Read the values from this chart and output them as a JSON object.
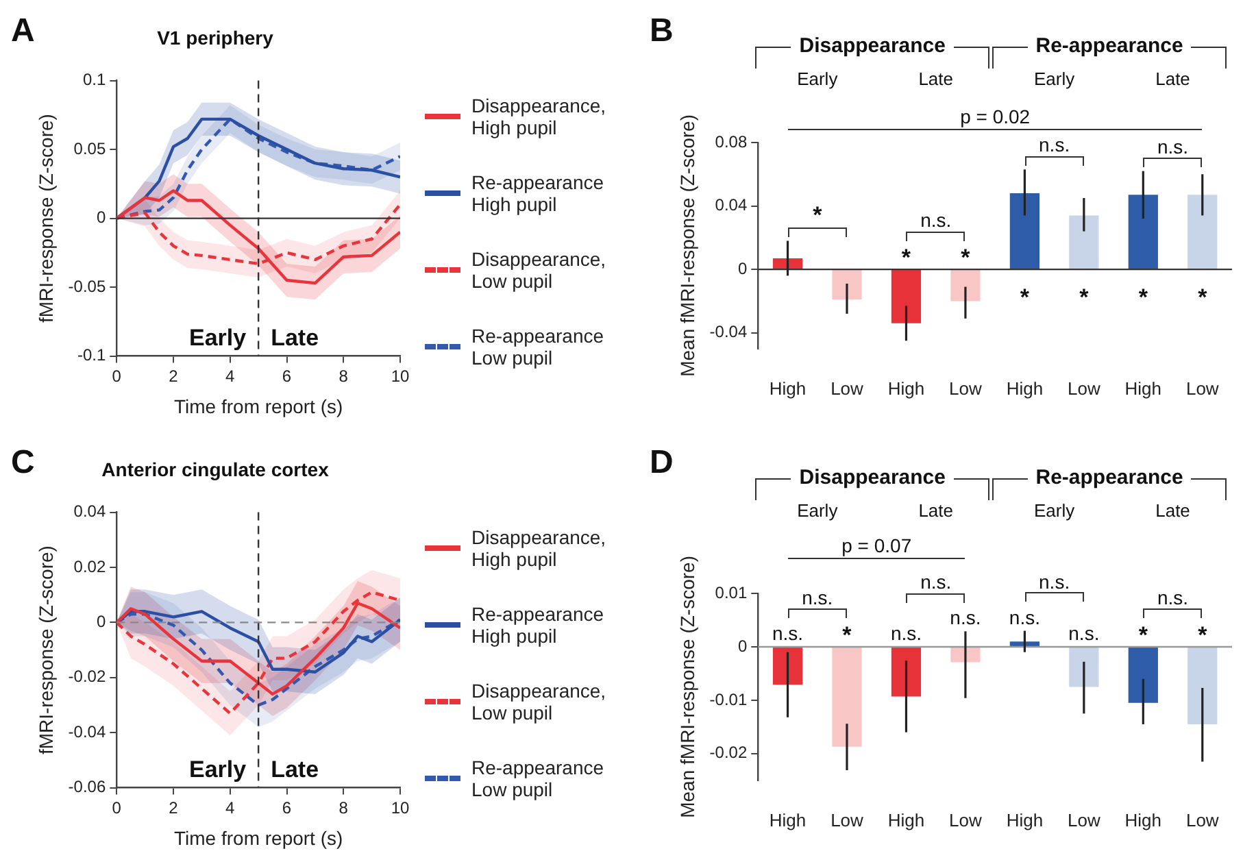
{
  "chart_data": [
    {
      "type": "line",
      "title": "V1 periphery",
      "xlabel": "Time from report (s)",
      "ylabel": "fMRI-response (Z-score)",
      "x": [
        0,
        1,
        1.5,
        2,
        2.5,
        3,
        4,
        5,
        6,
        7,
        8,
        9,
        10
      ],
      "xlim": [
        0,
        10
      ],
      "xticks": [
        0,
        2,
        4,
        6,
        8,
        10
      ],
      "ylim": [
        -0.1,
        0.1
      ],
      "yticks": [
        -0.1,
        -0.05,
        0,
        0.05,
        0.1
      ],
      "legend": "right",
      "series": [
        {
          "name": "Disappearance, High pupil",
          "color": "#e8343b",
          "values": [
            0,
            0.015,
            0.013,
            0.02,
            0.013,
            0.013,
            -0.005,
            -0.022,
            -0.045,
            -0.047,
            -0.028,
            -0.027,
            -0.01
          ],
          "lower": [
            0,
            0.003,
            0.001,
            0.008,
            0.001,
            0.001,
            -0.017,
            -0.034,
            -0.057,
            -0.059,
            -0.04,
            -0.039,
            -0.022
          ],
          "upper": [
            0,
            0.027,
            0.025,
            0.032,
            0.025,
            0.025,
            0.007,
            -0.01,
            -0.033,
            -0.035,
            -0.016,
            -0.015,
            0.002
          ]
        },
        {
          "name": "Re-appearance High pupil",
          "color": "#2b4fa3",
          "values": [
            0,
            0.015,
            0.027,
            0.052,
            0.058,
            0.072,
            0.072,
            0.06,
            0.05,
            0.04,
            0.036,
            0.035,
            0.03
          ],
          "lower": [
            0,
            0.003,
            0.015,
            0.04,
            0.046,
            0.06,
            0.06,
            0.048,
            0.038,
            0.028,
            0.024,
            0.023,
            0.018
          ],
          "upper": [
            0,
            0.027,
            0.039,
            0.064,
            0.07,
            0.084,
            0.084,
            0.072,
            0.062,
            0.052,
            0.048,
            0.047,
            0.042
          ]
        },
        {
          "name": "Disappearance, Low pupil",
          "color": "#e8343b",
          "line_style": "dashed",
          "values": [
            0,
            0.004,
            -0.01,
            -0.02,
            -0.026,
            -0.027,
            -0.03,
            -0.033,
            -0.025,
            -0.03,
            -0.02,
            -0.015,
            0.01
          ],
          "lower": [
            0,
            -0.006,
            -0.02,
            -0.03,
            -0.036,
            -0.037,
            -0.04,
            -0.043,
            -0.035,
            -0.04,
            -0.03,
            -0.025,
            0
          ],
          "upper": [
            0,
            0.014,
            0,
            -0.01,
            -0.016,
            -0.017,
            -0.02,
            -0.023,
            -0.015,
            -0.02,
            -0.01,
            -0.005,
            0.02
          ]
        },
        {
          "name": "Re-appearance Low pupil",
          "color": "#3358b0",
          "line_style": "dashed",
          "values": [
            0,
            0.005,
            0.006,
            0.015,
            0.035,
            0.05,
            0.072,
            0.058,
            0.048,
            0.04,
            0.038,
            0.035,
            0.045
          ],
          "lower": [
            0,
            -0.005,
            -0.004,
            0.005,
            0.025,
            0.04,
            0.062,
            0.048,
            0.038,
            0.03,
            0.028,
            0.025,
            0.035
          ],
          "upper": [
            0,
            0.015,
            0.016,
            0.025,
            0.045,
            0.06,
            0.082,
            0.068,
            0.058,
            0.05,
            0.048,
            0.045,
            0.055
          ]
        }
      ],
      "ref_lines": [
        {
          "axis": "x",
          "value": 5,
          "color": "#333333",
          "line_style": "dashed"
        },
        {
          "axis": "y",
          "value": 0,
          "color": "#333333"
        }
      ],
      "annotations": [
        "A",
        "Early",
        "Late"
      ]
    },
    {
      "type": "bar",
      "ylabel": "Mean fMRI-response (Z-score)",
      "categories": [
        "High",
        "Low",
        "High",
        "Low",
        "High",
        "Low",
        "High",
        "Low"
      ],
      "values": [
        0.007,
        -0.019,
        -0.034,
        -0.02,
        0.048,
        0.034,
        0.047,
        0.047
      ],
      "colors": [
        "#e8323a",
        "#f9c6c6",
        "#e8323a",
        "#f9c6c6",
        "#2f5ca8",
        "#c8d4e8",
        "#2f5ca8",
        "#c8d4e8"
      ],
      "errors": [
        [
          -0.004,
          0.018
        ],
        [
          -0.028,
          -0.009
        ],
        [
          -0.045,
          -0.023
        ],
        [
          -0.031,
          -0.011
        ],
        [
          0.034,
          0.063
        ],
        [
          0.024,
          0.045
        ],
        [
          0.032,
          0.062
        ],
        [
          0.034,
          0.06
        ]
      ],
      "ylim": [
        -0.05,
        0.08
      ],
      "yticks": [
        -0.04,
        0,
        0.04,
        0.08
      ],
      "ref_lines": [
        {
          "axis": "y",
          "value": 0,
          "color": "#333333"
        }
      ],
      "annotations": [
        "B",
        "Disappearance",
        "Re-appearance",
        "Early",
        "Late",
        "Early",
        "Late",
        "p = 0.02",
        "*",
        "n.s.",
        "n.s.",
        "n.s.",
        "*",
        "*",
        "*",
        "*",
        "*",
        "*"
      ]
    },
    {
      "type": "line",
      "title": "Anterior cingulate cortex",
      "xlabel": "Time from report (s)",
      "ylabel": "fMRI-response (Z-score)",
      "x": [
        0,
        0.5,
        1,
        2,
        3,
        4,
        5,
        5.5,
        6,
        7,
        8,
        8.5,
        9,
        10
      ],
      "xlim": [
        0,
        10
      ],
      "xticks": [
        0,
        2,
        4,
        6,
        8,
        10
      ],
      "ylim": [
        -0.06,
        0.04
      ],
      "yticks": [
        -0.06,
        -0.04,
        -0.02,
        0,
        0.02,
        0.04
      ],
      "legend": "right",
      "series": [
        {
          "name": "Disappearance, High pupil",
          "color": "#e8343b",
          "values": [
            0,
            0.005,
            0.003,
            -0.006,
            -0.014,
            -0.014,
            -0.022,
            -0.026,
            -0.023,
            -0.013,
            -0.002,
            0.007,
            0.005,
            -0.002
          ],
          "lower": [
            0,
            -0.003,
            -0.005,
            -0.014,
            -0.022,
            -0.022,
            -0.03,
            -0.034,
            -0.031,
            -0.021,
            -0.01,
            -0.001,
            -0.003,
            -0.01
          ],
          "upper": [
            0,
            0.013,
            0.011,
            0.002,
            -0.006,
            -0.006,
            -0.014,
            -0.018,
            -0.015,
            -0.005,
            0.006,
            0.015,
            0.013,
            0.006
          ]
        },
        {
          "name": "Re-appearance High pupil",
          "color": "#2b4fa3",
          "values": [
            0,
            0.004,
            0.004,
            0.002,
            0.004,
            -0.002,
            -0.007,
            -0.017,
            -0.017,
            -0.018,
            -0.011,
            -0.005,
            -0.007,
            0.001
          ],
          "lower": [
            0,
            -0.004,
            -0.004,
            -0.006,
            -0.004,
            -0.01,
            -0.015,
            -0.025,
            -0.025,
            -0.026,
            -0.019,
            -0.013,
            -0.015,
            -0.007
          ],
          "upper": [
            0,
            0.012,
            0.012,
            0.01,
            0.012,
            0.006,
            0.001,
            -0.009,
            -0.009,
            -0.01,
            -0.003,
            0.003,
            0.001,
            0.009
          ]
        },
        {
          "name": "Disappearance, Low pupil",
          "color": "#e8343b",
          "line_style": "dashed",
          "values": [
            0,
            -0.005,
            -0.008,
            -0.015,
            -0.024,
            -0.033,
            -0.022,
            -0.013,
            -0.013,
            -0.007,
            0.004,
            0.008,
            0.011,
            0.008
          ],
          "lower": [
            0,
            -0.013,
            -0.016,
            -0.023,
            -0.032,
            -0.041,
            -0.03,
            -0.021,
            -0.021,
            -0.015,
            -0.004,
            0,
            0.003,
            0
          ],
          "upper": [
            0,
            0.003,
            0,
            -0.007,
            -0.016,
            -0.025,
            -0.014,
            -0.005,
            -0.005,
            0.001,
            0.012,
            0.016,
            0.019,
            0.016
          ]
        },
        {
          "name": "Re-appearance Low pupil",
          "color": "#3358b0",
          "line_style": "dashed",
          "values": [
            0,
            0.003,
            0.003,
            -0.001,
            -0.01,
            -0.022,
            -0.03,
            -0.028,
            -0.024,
            -0.016,
            -0.01,
            -0.006,
            -0.005,
            0.001
          ],
          "lower": [
            0,
            -0.005,
            -0.005,
            -0.009,
            -0.018,
            -0.03,
            -0.038,
            -0.036,
            -0.032,
            -0.024,
            -0.018,
            -0.014,
            -0.013,
            -0.007
          ],
          "upper": [
            0,
            0.011,
            0.011,
            0.007,
            -0.002,
            -0.014,
            -0.022,
            -0.02,
            -0.016,
            -0.008,
            -0.002,
            0.002,
            0.003,
            0.009
          ]
        }
      ],
      "ref_lines": [
        {
          "axis": "x",
          "value": 5,
          "color": "#333333",
          "line_style": "dashed"
        },
        {
          "axis": "y",
          "value": 0,
          "color": "#888888",
          "line_style": "dashed"
        }
      ],
      "annotations": [
        "C",
        "Early",
        "Late"
      ]
    },
    {
      "type": "bar",
      "ylabel": "Mean fMRI-response (Z-score)",
      "categories": [
        "High",
        "Low",
        "High",
        "Low",
        "High",
        "Low",
        "High",
        "Low"
      ],
      "values": [
        -0.0071,
        -0.0187,
        -0.0093,
        -0.0029,
        0.001,
        -0.0075,
        -0.0105,
        -0.0145
      ],
      "colors": [
        "#e8323a",
        "#f9c6c6",
        "#e8323a",
        "#f9c6c6",
        "#2f5ca8",
        "#c8d4e8",
        "#2f5ca8",
        "#c8d4e8"
      ],
      "errors": [
        [
          -0.0132,
          -0.001
        ],
        [
          -0.0231,
          -0.0144
        ],
        [
          -0.016,
          -0.0026
        ],
        [
          -0.0096,
          0.0029
        ],
        [
          -0.001,
          0.003
        ],
        [
          -0.0125,
          -0.0028
        ],
        [
          -0.0145,
          -0.006
        ],
        [
          -0.0215,
          -0.0077
        ]
      ],
      "ylim": [
        -0.025,
        0.01
      ],
      "yticks": [
        -0.02,
        -0.01,
        0,
        0.01
      ],
      "ref_lines": [
        {
          "axis": "y",
          "value": 0,
          "color": "#999999"
        }
      ],
      "annotations": [
        "D",
        "Disappearance",
        "Re-appearance",
        "Early",
        "Late",
        "Early",
        "Late",
        "p = 0.07",
        "n.s.",
        "n.s.",
        "n.s.",
        "n.s.",
        "n.s.",
        "*",
        "n.s.",
        "n.s.",
        "n.s.",
        "n.s.",
        "*",
        "*"
      ]
    }
  ]
}
